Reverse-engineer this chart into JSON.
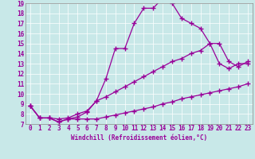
{
  "background_color": "#c8e8e8",
  "line_color": "#990099",
  "xlabel": "Windchill (Refroidissement éolien,°C)",
  "xlim": [
    -0.5,
    23.5
  ],
  "ylim": [
    7,
    19
  ],
  "xticks": [
    0,
    1,
    2,
    3,
    4,
    5,
    6,
    7,
    8,
    9,
    10,
    11,
    12,
    13,
    14,
    15,
    16,
    17,
    18,
    19,
    20,
    21,
    22,
    23
  ],
  "yticks": [
    7,
    8,
    9,
    10,
    11,
    12,
    13,
    14,
    15,
    16,
    17,
    18,
    19
  ],
  "series": [
    {
      "x": [
        0,
        1,
        2,
        3,
        4,
        5,
        6,
        7,
        8,
        9,
        10,
        11,
        12,
        13,
        14,
        15,
        16,
        17,
        18,
        19,
        20,
        21,
        22,
        23
      ],
      "y": [
        8.8,
        7.6,
        7.6,
        7.2,
        7.5,
        7.5,
        7.5,
        7.5,
        7.7,
        7.9,
        8.1,
        8.3,
        8.5,
        8.7,
        9.0,
        9.2,
        9.5,
        9.7,
        9.9,
        10.1,
        10.3,
        10.5,
        10.7,
        11.0
      ]
    },
    {
      "x": [
        0,
        1,
        2,
        3,
        4,
        5,
        6,
        7,
        8,
        9,
        10,
        11,
        12,
        13,
        14,
        15,
        16,
        17,
        18,
        19,
        20,
        21,
        22,
        23
      ],
      "y": [
        8.8,
        7.6,
        7.6,
        7.5,
        7.6,
        8.0,
        8.3,
        9.3,
        9.7,
        10.2,
        10.7,
        11.2,
        11.7,
        12.2,
        12.7,
        13.2,
        13.5,
        14.0,
        14.3,
        15.0,
        15.0,
        13.2,
        12.7,
        13.2
      ]
    },
    {
      "x": [
        0,
        1,
        2,
        3,
        4,
        5,
        6,
        7,
        8,
        9,
        10,
        11,
        12,
        13,
        14,
        15,
        16,
        17,
        18,
        19,
        20,
        21,
        22,
        23
      ],
      "y": [
        8.8,
        7.6,
        7.6,
        7.2,
        7.5,
        7.7,
        8.2,
        9.3,
        11.5,
        14.5,
        14.5,
        17.0,
        18.5,
        18.5,
        19.5,
        19.0,
        17.5,
        17.0,
        16.5,
        15.0,
        13.0,
        12.5,
        13.0,
        13.0
      ]
    }
  ],
  "marker": "+",
  "markersize": 4,
  "markeredgewidth": 1.0,
  "linewidth": 0.9,
  "tick_labelsize": 5.5,
  "xlabel_fontsize": 5.5
}
